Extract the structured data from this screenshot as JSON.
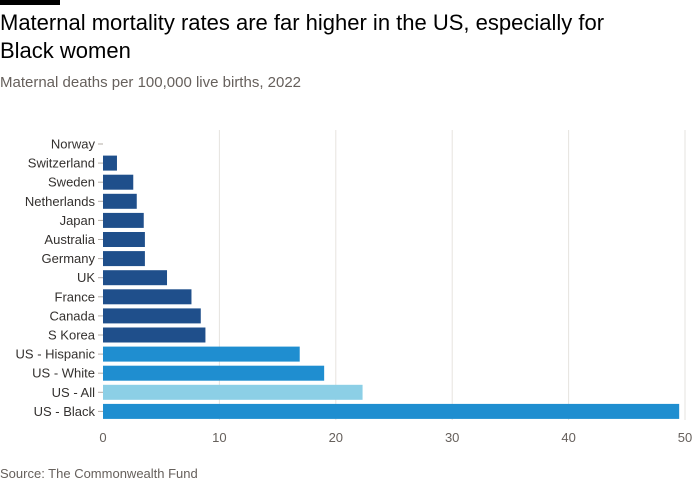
{
  "title": "Maternal mortality rates are far higher in the US, especially for Black women",
  "subtitle": "Maternal deaths per 100,000 live births, 2022",
  "source": "Source: The Commonwealth Fund",
  "chart_data": {
    "type": "bar",
    "orientation": "horizontal",
    "categories": [
      "Norway",
      "Switzerland",
      "Sweden",
      "Netherlands",
      "Japan",
      "Australia",
      "Germany",
      "UK",
      "France",
      "Canada",
      "S Korea",
      "US - Hispanic",
      "US - White",
      "US - All",
      "US - Black"
    ],
    "values": [
      0,
      1.2,
      2.6,
      2.9,
      3.5,
      3.6,
      3.6,
      5.5,
      7.6,
      8.4,
      8.8,
      16.9,
      19.0,
      22.3,
      49.5
    ],
    "colors": [
      "#1f4f8b",
      "#1f4f8b",
      "#1f4f8b",
      "#1f4f8b",
      "#1f4f8b",
      "#1f4f8b",
      "#1f4f8b",
      "#1f4f8b",
      "#1f4f8b",
      "#1f4f8b",
      "#1f4f8b",
      "#1f8ed0",
      "#1f8ed0",
      "#8ccfe6",
      "#1f8ed0"
    ],
    "xlim": [
      0,
      50
    ],
    "xticks": [
      "0",
      "10",
      "20",
      "30",
      "40",
      "50"
    ],
    "grid": true
  }
}
